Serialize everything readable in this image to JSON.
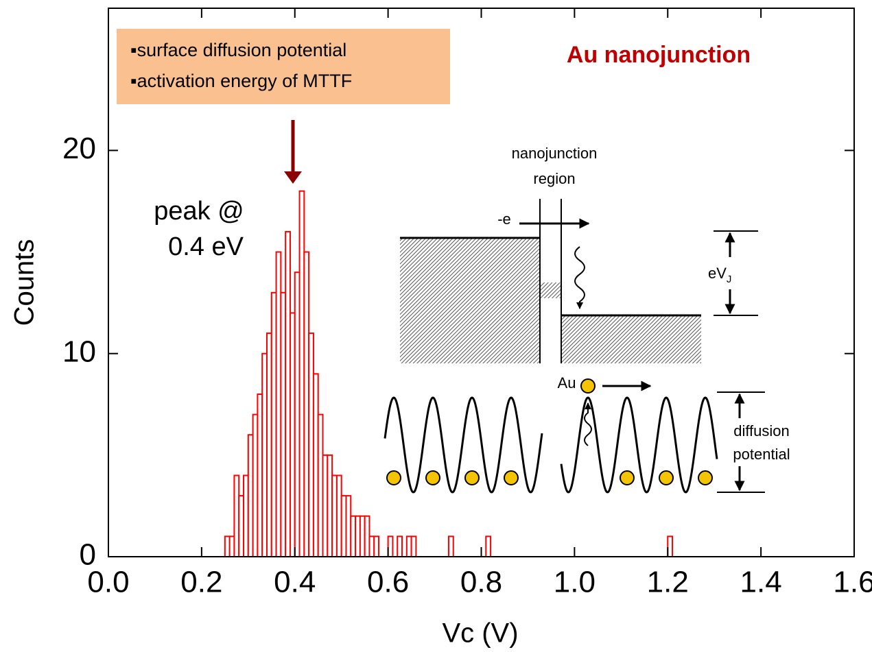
{
  "chart_data": {
    "type": "histogram",
    "title": "Au nanojunction",
    "title_color": "#c00000",
    "xlabel": "Vc (V)",
    "ylabel": "Counts",
    "color": "#ff0000",
    "bins": [
      0.25,
      0.26,
      0.27,
      0.28,
      0.29,
      0.3,
      0.31,
      0.32,
      0.33,
      0.34,
      0.35,
      0.36,
      0.37,
      0.38,
      0.39,
      0.4,
      0.41,
      0.42,
      0.43,
      0.44,
      0.45,
      0.46,
      0.47,
      0.48,
      0.49,
      0.5,
      0.51,
      0.52,
      0.53,
      0.54,
      0.55,
      0.56,
      0.57,
      0.58,
      0.59,
      0.6,
      0.61,
      0.62,
      0.63,
      0.64,
      0.65,
      0.66,
      0.67,
      0.68,
      0.69,
      0.7,
      0.71,
      0.72,
      0.73,
      0.74,
      0.75,
      0.76,
      0.77,
      0.78,
      0.79,
      0.8,
      0.81,
      0.82,
      0.83,
      0.84,
      0.85,
      0.86,
      0.87,
      0.88,
      0.89,
      0.9,
      0.91,
      0.92,
      0.93,
      0.94,
      0.95,
      0.96,
      0.97,
      0.98,
      0.99,
      1.0,
      1.01,
      1.02,
      1.03,
      1.04,
      1.05,
      1.06,
      1.07,
      1.08,
      1.09,
      1.1,
      1.11,
      1.12,
      1.13,
      1.14,
      1.15,
      1.16,
      1.17,
      1.18,
      1.19,
      1.2,
      1.21
    ],
    "values": [
      1,
      1,
      4,
      3,
      4,
      6,
      7,
      8,
      10,
      11,
      13,
      15,
      13,
      16,
      12,
      14,
      18,
      15,
      11,
      9,
      7,
      5,
      5,
      4,
      4,
      3,
      3,
      2,
      2,
      2,
      2,
      1,
      1,
      0,
      0,
      1,
      0,
      1,
      0,
      1,
      1,
      0,
      0,
      0,
      0,
      0,
      0,
      0,
      1,
      0,
      0,
      0,
      0,
      0,
      0,
      0,
      1,
      0,
      0,
      0,
      0,
      0,
      0,
      0,
      0,
      0,
      0,
      0,
      0,
      0,
      0,
      0,
      0,
      0,
      0,
      0,
      0,
      0,
      0,
      0,
      0,
      0,
      0,
      0,
      0,
      0,
      0,
      0,
      0,
      0,
      0,
      0,
      0,
      0,
      0,
      1
    ],
    "xlim": [
      0,
      1.6
    ],
    "ylim": [
      0,
      27
    ],
    "xticks": [
      {
        "value": 0,
        "label": "0.0"
      },
      0.2,
      0.4,
      0.6,
      0.8,
      {
        "value": 1,
        "label": "1.0"
      },
      1.2,
      1.4,
      1.6
    ],
    "yticks": [
      0,
      10,
      20
    ],
    "annotations": {
      "box": [
        "▪surface diffusion potential",
        "▪activation energy of MTTF"
      ],
      "peak": [
        "peak @",
        "0.4 eV"
      ]
    },
    "inset": {
      "region": [
        "nanojunction",
        "region"
      ],
      "electron": "-e",
      "energy": "eV",
      "energy_sub": "J",
      "atom": "Au",
      "diffusion": [
        "diffusion",
        "potential"
      ]
    }
  }
}
